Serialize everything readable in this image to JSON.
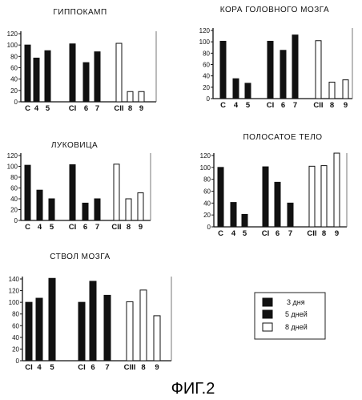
{
  "figure_caption": "ФИГ.2",
  "legend": {
    "entries": [
      {
        "label": "3 дня",
        "fill": "#111111"
      },
      {
        "label": "5 дней",
        "fill": "#111111"
      },
      {
        "label": "8 дней",
        "fill": "#ffffff"
      }
    ]
  },
  "chart_data": [
    {
      "type": "bar",
      "title": "ГИППОКАМП",
      "ylim": [
        0,
        120
      ],
      "yticks": [
        0,
        20,
        40,
        60,
        80,
        100,
        120
      ],
      "categories": [
        "C",
        "4",
        "5",
        "CI",
        "6",
        "7",
        "CII",
        "8",
        "9"
      ],
      "values": [
        100,
        77,
        90,
        102,
        69,
        88,
        103,
        18,
        18
      ],
      "fills": [
        "dark",
        "dark",
        "dark",
        "dark",
        "dark",
        "dark",
        "light",
        "light",
        "light"
      ]
    },
    {
      "type": "bar",
      "title": "КОРА ГОЛОВНОГО МОЗГА",
      "ylim": [
        0,
        120
      ],
      "yticks": [
        0,
        20,
        40,
        60,
        80,
        100,
        120
      ],
      "categories": [
        "C",
        "4",
        "5",
        "CI",
        "6",
        "7",
        "CII",
        "8",
        "9"
      ],
      "values": [
        101,
        35,
        27,
        101,
        85,
        112,
        102,
        29,
        33
      ],
      "fills": [
        "dark",
        "dark",
        "dark",
        "dark",
        "dark",
        "dark",
        "light",
        "light",
        "light"
      ]
    },
    {
      "type": "bar",
      "title": "ЛУКОВИЦА",
      "ylim": [
        0,
        120
      ],
      "yticks": [
        0,
        20,
        40,
        60,
        80,
        100,
        120
      ],
      "categories": [
        "C",
        "4",
        "5",
        "CI",
        "6",
        "7",
        "CII",
        "8",
        "9"
      ],
      "values": [
        102,
        56,
        40,
        103,
        32,
        40,
        104,
        40,
        51
      ],
      "fills": [
        "dark",
        "dark",
        "dark",
        "dark",
        "dark",
        "dark",
        "light",
        "light",
        "light"
      ]
    },
    {
      "type": "bar",
      "title": "ПОЛОСАТОЕ ТЕЛО",
      "ylim": [
        0,
        120
      ],
      "yticks": [
        0,
        20,
        40,
        60,
        80,
        100,
        120
      ],
      "categories": [
        "C",
        "4",
        "5",
        "CI",
        "6",
        "7",
        "CII",
        "8",
        "9"
      ],
      "values": [
        100,
        41,
        21,
        101,
        75,
        40,
        102,
        103,
        124
      ],
      "fills": [
        "dark",
        "dark",
        "dark",
        "dark",
        "dark",
        "dark",
        "light",
        "light",
        "light"
      ]
    },
    {
      "type": "bar",
      "title": "СТВОЛ МОЗГА",
      "ylim": [
        0,
        140
      ],
      "yticks": [
        0,
        20,
        40,
        60,
        80,
        100,
        120,
        140
      ],
      "categories": [
        "CI",
        "4",
        "5",
        "CI",
        "6",
        "7",
        "CIII",
        "8",
        "9"
      ],
      "values": [
        100,
        107,
        141,
        100,
        136,
        112,
        101,
        121,
        77
      ],
      "fills": [
        "dark",
        "dark",
        "dark",
        "dark",
        "dark",
        "dark",
        "light",
        "light",
        "light"
      ]
    }
  ]
}
